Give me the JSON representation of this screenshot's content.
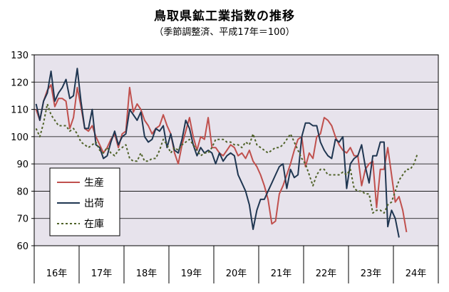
{
  "chart_data": {
    "type": "line",
    "title": "鳥取県鉱工業指数の推移",
    "subtitle": "（季節調整済、平成17年＝100）",
    "xlabel": "",
    "ylabel": "",
    "ylim": [
      60,
      130
    ],
    "yticks": [
      60,
      70,
      80,
      90,
      100,
      110,
      120,
      130
    ],
    "grid": true,
    "legend_position": "bottom-left",
    "year_labels": [
      "16年",
      "17年",
      "18年",
      "19年",
      "20年",
      "21年",
      "22年",
      "23年",
      "24年"
    ],
    "months_per_year": 12,
    "legend": [
      "生産",
      "出荷",
      "在庫"
    ],
    "series": [
      {
        "name": "生産",
        "color": "#c0504d",
        "dash": "none",
        "values": [
          110,
          106,
          113,
          117,
          119,
          111,
          114,
          114,
          113,
          103,
          107,
          118,
          111,
          103,
          102,
          104,
          100,
          97,
          94,
          96,
          99,
          101,
          96,
          101,
          102,
          118,
          109,
          112,
          110,
          106,
          104,
          101,
          103,
          104,
          108,
          104,
          101,
          94,
          90,
          97,
          102,
          107,
          100,
          95,
          100,
          99,
          107,
          96,
          96,
          94,
          93,
          95,
          97,
          96,
          93,
          94,
          92,
          95,
          91,
          89,
          86,
          82,
          77,
          68,
          69,
          79,
          82,
          86,
          90,
          95,
          99,
          100,
          89,
          94,
          92,
          100,
          101,
          107,
          106,
          104,
          100,
          97,
          95,
          94,
          96,
          93,
          93,
          82,
          88,
          90,
          91,
          74,
          88,
          88,
          96,
          86,
          76,
          78,
          73,
          65
        ]
      },
      {
        "name": "出荷",
        "color": "#1f3651",
        "dash": "none",
        "values": [
          112,
          106,
          113,
          116,
          124,
          113,
          116,
          118,
          121,
          114,
          115,
          125,
          113,
          103,
          103,
          110,
          97,
          96,
          92,
          93,
          98,
          102,
          97,
          100,
          101,
          110,
          108,
          106,
          109,
          100,
          98,
          99,
          103,
          102,
          104,
          96,
          101,
          95,
          94,
          99,
          106,
          103,
          97,
          93,
          96,
          94,
          95,
          94,
          90,
          94,
          91,
          93,
          94,
          93,
          86,
          83,
          80,
          75,
          66,
          73,
          77,
          77,
          80,
          83,
          86,
          89,
          90,
          81,
          88,
          85,
          86,
          100,
          105,
          105,
          104,
          104,
          98,
          95,
          93,
          92,
          99,
          98,
          100,
          81,
          90,
          92,
          93,
          97,
          89,
          83,
          93,
          93,
          98,
          98,
          67,
          73,
          70,
          63
        ]
      },
      {
        "name": "在庫",
        "color": "#4f6228",
        "dash": "3,3",
        "values": [
          103,
          100,
          105,
          112,
          108,
          106,
          104,
          104,
          104,
          102,
          103,
          101,
          98,
          97,
          96,
          97,
          98,
          95,
          94,
          96,
          94,
          93,
          95,
          96,
          97,
          92,
          91,
          91,
          94,
          91,
          91,
          92,
          92,
          95,
          99,
          97,
          94,
          96,
          95,
          97,
          98,
          99,
          97,
          95,
          93,
          94,
          94,
          96,
          99,
          99,
          99,
          98,
          98,
          97,
          97,
          96,
          98,
          97,
          101,
          97,
          96,
          95,
          94,
          95,
          96,
          96,
          97,
          99,
          101,
          98,
          95,
          92,
          90,
          86,
          82,
          86,
          88,
          88,
          86,
          86,
          86,
          86,
          87,
          86,
          88,
          81,
          80,
          80,
          79,
          79,
          72,
          73,
          73,
          72,
          75,
          76,
          80,
          84,
          86,
          88,
          88,
          90,
          94
        ]
      }
    ]
  }
}
